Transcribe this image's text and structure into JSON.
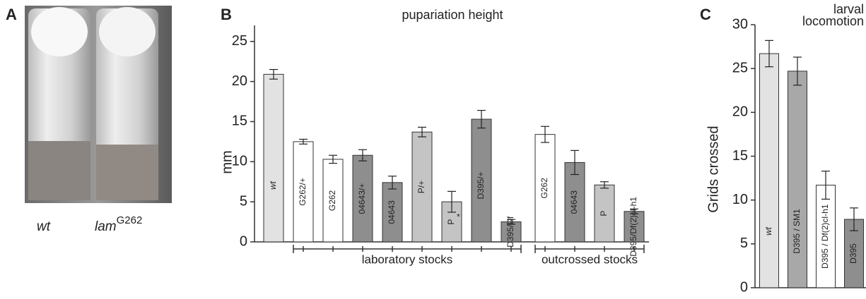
{
  "panel_a": {
    "letter": "A",
    "caption_left": "wt",
    "caption_right": "lam",
    "caption_right_sup": "G262"
  },
  "chart_data": [
    {
      "type": "bar",
      "letter": "B",
      "title": "pupariation height",
      "ylabel": "mm",
      "categories": [
        "wt",
        "G262/+",
        "G262",
        "04643/+",
        "04643",
        "P/+",
        "P",
        "D395/+",
        "D395/Df",
        "G262",
        "04643",
        "P",
        "D395/Df(2)cl-h1"
      ],
      "values": [
        20.9,
        12.5,
        10.3,
        10.8,
        7.4,
        13.7,
        5.0,
        15.3,
        2.5,
        13.4,
        9.9,
        7.1,
        3.8
      ],
      "errors": [
        0.6,
        0.3,
        0.5,
        0.7,
        0.8,
        0.6,
        1.3,
        1.1,
        0.3,
        1.0,
        1.5,
        0.4,
        0.3
      ],
      "colors": [
        "#e2e2e2",
        "#ffffff",
        "#ffffff",
        "#8e8e8e",
        "#8e8e8e",
        "#c4c4c4",
        "#c4c4c4",
        "#8e8e8e",
        "#8e8e8e",
        "#ffffff",
        "#8e8e8e",
        "#c4c4c4",
        "#8e8e8e"
      ],
      "annotation": "*",
      "groups": [
        "laboratory stocks",
        "outcrossed stocks"
      ],
      "ylim": [
        0,
        27
      ],
      "yticks": [
        0,
        5,
        10,
        15,
        20,
        25
      ]
    },
    {
      "type": "bar",
      "letter": "C",
      "title_lines": [
        "larval",
        "locomotion"
      ],
      "ylabel": "Grids crossed",
      "categories": [
        "wt",
        "D395 / SM1",
        "D395 / Df(2)cl-h1",
        "D395"
      ],
      "values": [
        26.7,
        24.7,
        11.7,
        7.8
      ],
      "errors": [
        1.5,
        1.6,
        1.6,
        1.3
      ],
      "colors": [
        "#e2e2e2",
        "#a8a8a8",
        "#ffffff",
        "#8e8e8e"
      ],
      "ylim": [
        0,
        30
      ],
      "yticks": [
        0,
        5,
        10,
        15,
        20,
        25,
        30
      ]
    }
  ]
}
